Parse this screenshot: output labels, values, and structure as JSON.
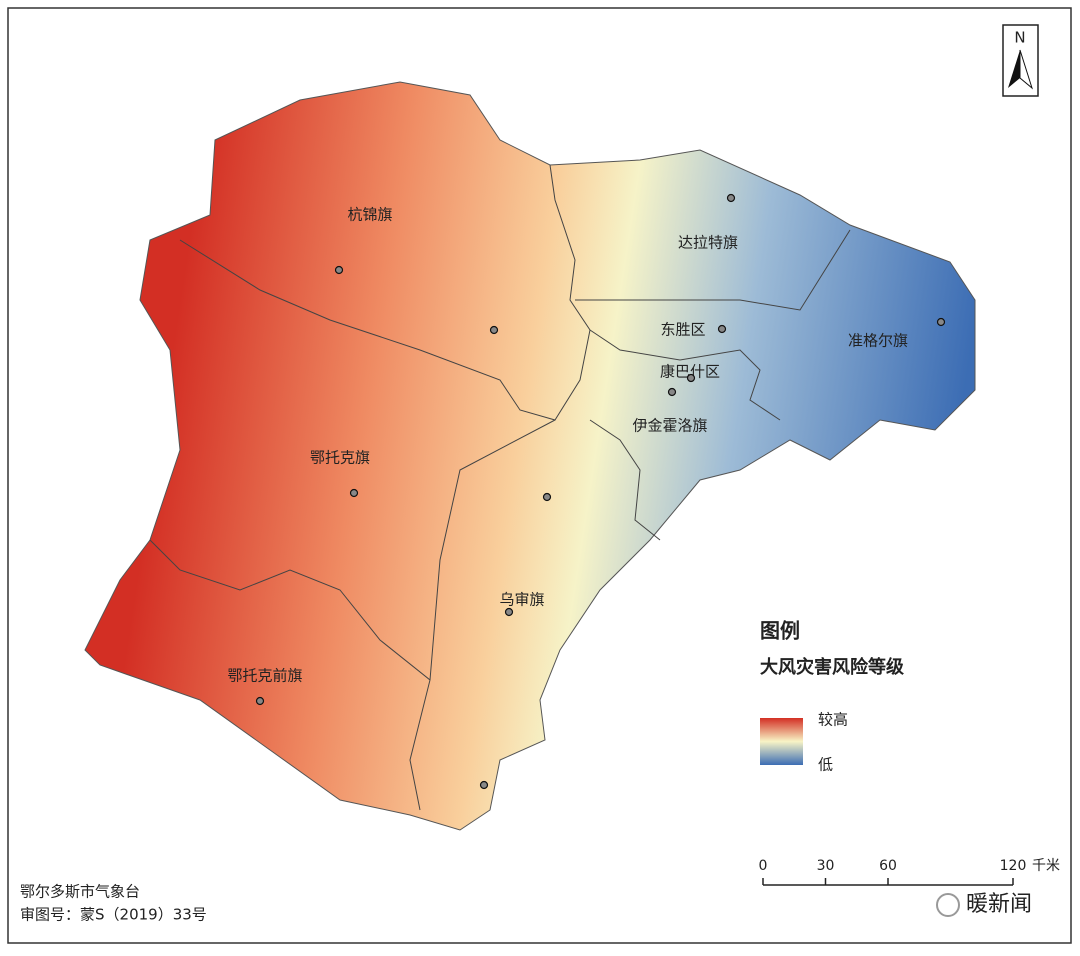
{
  "map": {
    "north": "N",
    "regions": [
      {
        "label": "杭锦旗"
      },
      {
        "label": "达拉特旗"
      },
      {
        "label": "东胜区"
      },
      {
        "label": "准格尔旗"
      },
      {
        "label": "康巴什区"
      },
      {
        "label": "伊金霍洛旗"
      },
      {
        "label": "鄂托克旗"
      },
      {
        "label": "乌审旗"
      },
      {
        "label": "鄂托克前旗"
      }
    ],
    "legend": {
      "title": "图例",
      "subtitle": "大风灾害风险等级",
      "high": "较高",
      "low": "低"
    },
    "scale": {
      "ticks": [
        0,
        30,
        60,
        120
      ],
      "unit": "千米"
    },
    "credits": [
      "鄂尔多斯市气象台",
      "审图号：蒙S（2019）33号"
    ],
    "watermark": "暖新闻"
  }
}
